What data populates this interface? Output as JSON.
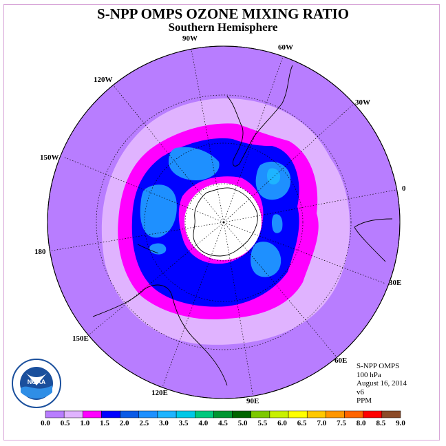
{
  "title": "S-NPP OMPS OZONE MIXING RATIO",
  "subtitle": "Southern Hemisphere",
  "longitude_labels": [
    {
      "id": "90w",
      "text": "90W"
    },
    {
      "id": "60w",
      "text": "60W"
    },
    {
      "id": "30w",
      "text": "30W"
    },
    {
      "id": "0",
      "text": "0"
    },
    {
      "id": "30e",
      "text": "30E"
    },
    {
      "id": "60e",
      "text": "60E"
    },
    {
      "id": "90e",
      "text": "90E"
    },
    {
      "id": "120e",
      "text": "120E"
    },
    {
      "id": "150e",
      "text": "150E"
    },
    {
      "id": "180",
      "text": "180"
    },
    {
      "id": "150w",
      "text": "150W"
    },
    {
      "id": "120w",
      "text": "120W"
    }
  ],
  "info": {
    "instrument": "S-NPP OMPS",
    "level": "100 hPa",
    "date": "August 16, 2014",
    "version": "v6",
    "units": "PPM"
  },
  "logo": {
    "text": "NOAA",
    "icon": "noaa-logo"
  },
  "colorbar": {
    "ticks": [
      "0.0",
      "0.5",
      "1.0",
      "1.5",
      "2.0",
      "2.5",
      "3.0",
      "3.5",
      "4.0",
      "4.5",
      "5.0",
      "5.5",
      "6.0",
      "6.5",
      "7.0",
      "7.5",
      "8.0",
      "8.5",
      "9.0"
    ],
    "colors": [
      "#b87dff",
      "#e0b3ff",
      "#ff00ff",
      "#0000ff",
      "#0a5ae6",
      "#1e90ff",
      "#1eb4ff",
      "#00c8e6",
      "#00c87d",
      "#009632",
      "#006400",
      "#7dc800",
      "#c8f000",
      "#ffff00",
      "#ffc800",
      "#ff9600",
      "#ff6400",
      "#ff0000",
      "#8c4b28"
    ]
  }
}
